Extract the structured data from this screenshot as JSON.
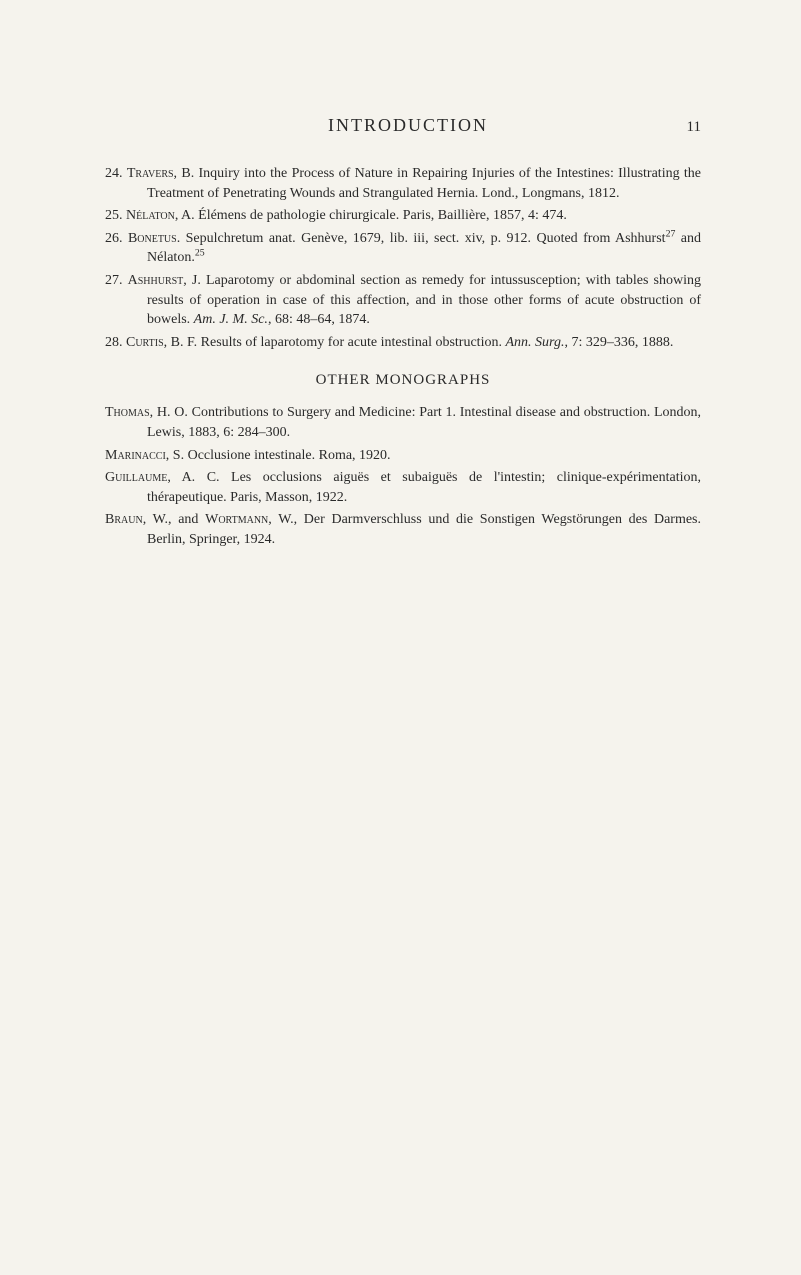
{
  "header": {
    "title": "INTRODUCTION",
    "page_number": "11"
  },
  "references": [
    {
      "num": "24.",
      "author": "Travers",
      "rest": ", B. Inquiry into the Process of Nature in Repairing Injuries of the Intes­tines: Illustrating the Treatment of Penetrating Wounds and Strangulated Hernia. Lond., Longmans, 1812."
    },
    {
      "num": "25.",
      "author": "Nélaton",
      "rest": ", A. Élémens de pathologie chirurgicale. Paris, Baillière, 1857, 4: 474."
    },
    {
      "num": "26.",
      "author": "Bonetus",
      "rest_pre": ". Sepulchretum anat. Genève, 1679, lib. iii, sect. xiv, p. 912. Quoted from Ashhurst",
      "sup1": "27",
      "mid": " and Nélaton.",
      "sup2": "25"
    },
    {
      "num": "27.",
      "author": "Ashhurst",
      "rest_pre": ", J. Laparotomy or abdominal section as remedy for intussusception; with tables showing results of operation in case of this affection, and in those other forms of acute obstruction of bowels. ",
      "italic": "Am. J. M. Sc.",
      "rest_post": ", 68: 48–64, 1874."
    },
    {
      "num": "28.",
      "author": "Curtis",
      "rest_pre": ", B. F. Results of laparotomy for acute intestinal obstruction. ",
      "italic": "Ann. Surg.",
      "rest_post": ", 7: 329–336, 1888."
    }
  ],
  "section_heading": "OTHER MONOGRAPHS",
  "monographs": [
    {
      "author": "Thomas",
      "rest": ", H. O. Contributions to Surgery and Medicine: Part 1. Intestinal disease and obstruction. London, Lewis, 1883, 6: 284–300."
    },
    {
      "author": "Marinacci",
      "rest": ", S. Occlusione intestinale. Roma, 1920."
    },
    {
      "author": "Guillaume",
      "rest": ", A. C. Les occlusions aiguës et subaiguës de l'intestin; clinique-expérimen­tation, thérapeutique. Paris, Masson, 1922."
    },
    {
      "author_pre": "Braun",
      "mid1": ", W., and ",
      "author2": "Wortmann",
      "rest": ", W., Der Darmverschluss und die Sonstigen Wegstörun­gen des Darmes. Berlin, Springer, 1924."
    }
  ]
}
